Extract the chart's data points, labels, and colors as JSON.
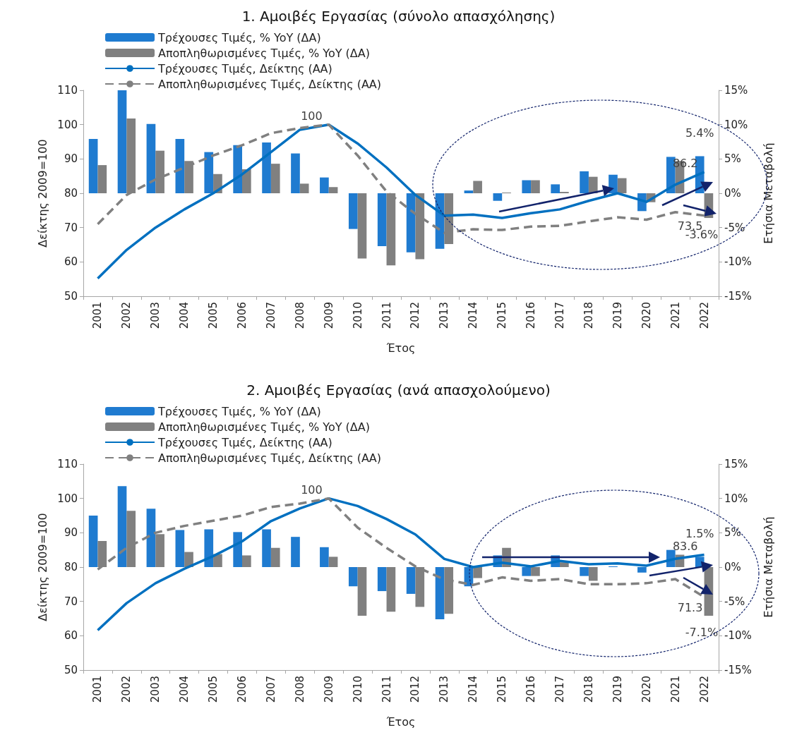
{
  "chart_data": [
    {
      "type": "bar",
      "title": "1. Αμοιβές Εργασίας (σύνολο απασχόλησης)",
      "xlabel": "Έτος",
      "ylabel": "Δείκτης 2009=100",
      "y2label": "Ετήσια Μεταβολή",
      "categories": [
        "2001",
        "2002",
        "2003",
        "2004",
        "2005",
        "2006",
        "2007",
        "2008",
        "2009",
        "2010",
        "2011",
        "2012",
        "2013",
        "2014",
        "2015",
        "2016",
        "2017",
        "2018",
        "2019",
        "2020",
        "2021",
        "2022"
      ],
      "ylim": [
        50,
        110
      ],
      "yticks": [
        50,
        60,
        70,
        80,
        90,
        100,
        110
      ],
      "y2lim": [
        -15,
        15
      ],
      "y2ticks": [
        {
          "value": -15,
          "label": "-15%"
        },
        {
          "value": -10,
          "label": "-10%"
        },
        {
          "value": -5,
          "label": "-5%"
        },
        {
          "value": 0,
          "label": "0%"
        },
        {
          "value": 5,
          "label": "5%"
        },
        {
          "value": 10,
          "label": "10%"
        },
        {
          "value": 15,
          "label": "15%"
        }
      ],
      "legend": "top left",
      "grid": false,
      "marker": "none",
      "series": [
        {
          "name": "Τρέχουσες Τιμές, % YoY (ΔΑ)",
          "axis": "y2",
          "color": "#1f7bd0",
          "values": [
            7.9,
            15,
            10.1,
            7.9,
            6.0,
            7.0,
            7.4,
            5.8,
            2.3,
            -5.2,
            -7.7,
            -8.6,
            -8.1,
            0.4,
            -1.1,
            1.9,
            1.3,
            3.2,
            2.7,
            -2.6,
            5.3,
            5.4
          ],
          "value_labels": [
            null,
            null,
            null,
            null,
            null,
            null,
            null,
            null,
            null,
            null,
            null,
            null,
            null,
            null,
            null,
            null,
            null,
            null,
            null,
            null,
            null,
            "5.4%"
          ]
        },
        {
          "name": "Αποπληθωρισμένες Τιμές, % YoY (ΔΑ)",
          "axis": "y2",
          "color": "#808080",
          "values": [
            4.1,
            10.9,
            6.2,
            4.7,
            2.8,
            3.5,
            4.3,
            1.4,
            0.9,
            -9.5,
            -10.5,
            -9.6,
            -7.4,
            1.8,
            0.1,
            1.9,
            0.2,
            2.4,
            2.2,
            -1.3,
            4.7,
            -3.6
          ],
          "value_labels": [
            null,
            null,
            null,
            null,
            null,
            null,
            null,
            null,
            null,
            null,
            null,
            null,
            null,
            null,
            null,
            null,
            null,
            null,
            null,
            null,
            null,
            "-3.6%"
          ]
        },
        {
          "name": "Τρέχουσες Τιμές, Δείκτης (ΑΑ)",
          "type": "line",
          "line_style": "solid",
          "color": "#0070c0",
          "values": [
            55.2,
            63.5,
            70,
            75.3,
            80,
            85.5,
            92,
            98.5,
            100,
            94.5,
            87.5,
            79.5,
            73.5,
            73.8,
            72.8,
            74.2,
            75.3,
            77.8,
            80,
            77.5,
            82.5,
            86.2
          ],
          "value_labels": [
            null,
            null,
            null,
            null,
            null,
            null,
            null,
            null,
            "100",
            null,
            null,
            null,
            null,
            null,
            null,
            null,
            null,
            null,
            null,
            null,
            null,
            "86.2"
          ]
        },
        {
          "name": "Αποπληθωρισμένες Τιμές, Δείκτης (ΑΑ)",
          "type": "line",
          "line_style": "dashed",
          "color": "#808080",
          "values": [
            71,
            79.5,
            84,
            87.5,
            91,
            94,
            97.5,
            99,
            100,
            91,
            80.5,
            74,
            68.5,
            69.5,
            69.3,
            70.3,
            70.5,
            71.8,
            73,
            72.3,
            74.5,
            73.5
          ],
          "value_labels": [
            null,
            null,
            null,
            null,
            null,
            null,
            null,
            null,
            null,
            null,
            null,
            null,
            null,
            null,
            null,
            null,
            null,
            null,
            null,
            null,
            null,
            "73.5"
          ]
        }
      ]
    },
    {
      "type": "bar",
      "title": "2. Αμοιβές Εργασίας (ανά απασχολούμενο)",
      "xlabel": "Έτος",
      "ylabel": "Δείκτης 2009=100",
      "y2label": "Ετήσια Μεταβολή",
      "categories": [
        "2001",
        "2002",
        "2003",
        "2004",
        "2005",
        "2006",
        "2007",
        "2008",
        "2009",
        "2010",
        "2011",
        "2012",
        "2013",
        "2014",
        "2015",
        "2016",
        "2017",
        "2018",
        "2019",
        "2020",
        "2021",
        "2022"
      ],
      "ylim": [
        50,
        110
      ],
      "yticks": [
        50,
        60,
        70,
        80,
        90,
        100,
        110
      ],
      "y2lim": [
        -15,
        15
      ],
      "y2ticks": [
        {
          "value": -15,
          "label": "-15%"
        },
        {
          "value": -10,
          "label": "-10%"
        },
        {
          "value": -5,
          "label": "-5%"
        },
        {
          "value": 0,
          "label": "0%"
        },
        {
          "value": 5,
          "label": "5%"
        },
        {
          "value": 10,
          "label": "10%"
        },
        {
          "value": 15,
          "label": "15%"
        }
      ],
      "legend": "top left",
      "grid": false,
      "marker": "none",
      "series": [
        {
          "name": "Τρέχουσες Τιμές, % YoY (ΔΑ)",
          "axis": "y2",
          "color": "#1f7bd0",
          "values": [
            7.5,
            11.8,
            8.5,
            5.4,
            5.5,
            5.1,
            5.5,
            4.4,
            2.9,
            -2.8,
            -3.5,
            -3.9,
            -7.6,
            -2.8,
            1.7,
            -1.3,
            1.7,
            -1.3,
            0.1,
            -0.8,
            2.5,
            1.5
          ],
          "value_labels": [
            null,
            null,
            null,
            null,
            null,
            null,
            null,
            null,
            null,
            null,
            null,
            null,
            null,
            null,
            null,
            null,
            null,
            null,
            null,
            null,
            null,
            "1.5%"
          ]
        },
        {
          "name": "Αποπληθωρισμένες Τιμές, % YoY (ΔΑ)",
          "axis": "y2",
          "color": "#808080",
          "values": [
            3.8,
            8.2,
            4.8,
            2.2,
            1.9,
            1.7,
            2.8,
            0.0,
            1.5,
            -7.1,
            -6.5,
            -5.8,
            -6.8,
            -1.6,
            2.8,
            -1.3,
            0.7,
            -2.0,
            0.0,
            0.0,
            1.8,
            -7.1
          ],
          "value_labels": [
            null,
            null,
            null,
            null,
            null,
            null,
            null,
            null,
            null,
            null,
            null,
            null,
            null,
            null,
            null,
            null,
            null,
            null,
            null,
            null,
            null,
            "-7.1%"
          ]
        },
        {
          "name": "Τρέχουσες Τιμές, Δείκτης (ΑΑ)",
          "type": "line",
          "line_style": "solid",
          "color": "#0070c0",
          "values": [
            61.6,
            69.5,
            75.3,
            79.5,
            83.2,
            87.5,
            93.4,
            97.1,
            100,
            97.8,
            94,
            89.5,
            82.4,
            80,
            81.3,
            80.2,
            81.8,
            80.8,
            81.1,
            80.4,
            82.4,
            83.6
          ],
          "value_labels": [
            null,
            null,
            null,
            null,
            null,
            null,
            null,
            null,
            "100",
            null,
            null,
            null,
            null,
            null,
            null,
            null,
            null,
            null,
            null,
            null,
            null,
            "83.6"
          ]
        },
        {
          "name": "Αποπληθωρισμένες Τιμές, Δείκτης (ΑΑ)",
          "type": "line",
          "line_style": "dashed",
          "color": "#808080",
          "values": [
            79.3,
            85.6,
            90,
            92,
            93.5,
            95,
            97.5,
            98.5,
            100,
            91.5,
            85.6,
            80.2,
            76.4,
            74.8,
            77,
            76,
            76.5,
            75,
            75,
            75.3,
            76.5,
            71.3
          ],
          "value_labels": [
            null,
            null,
            null,
            null,
            null,
            null,
            null,
            null,
            null,
            null,
            null,
            null,
            null,
            null,
            null,
            null,
            null,
            null,
            null,
            null,
            null,
            "71.3"
          ]
        }
      ]
    }
  ]
}
